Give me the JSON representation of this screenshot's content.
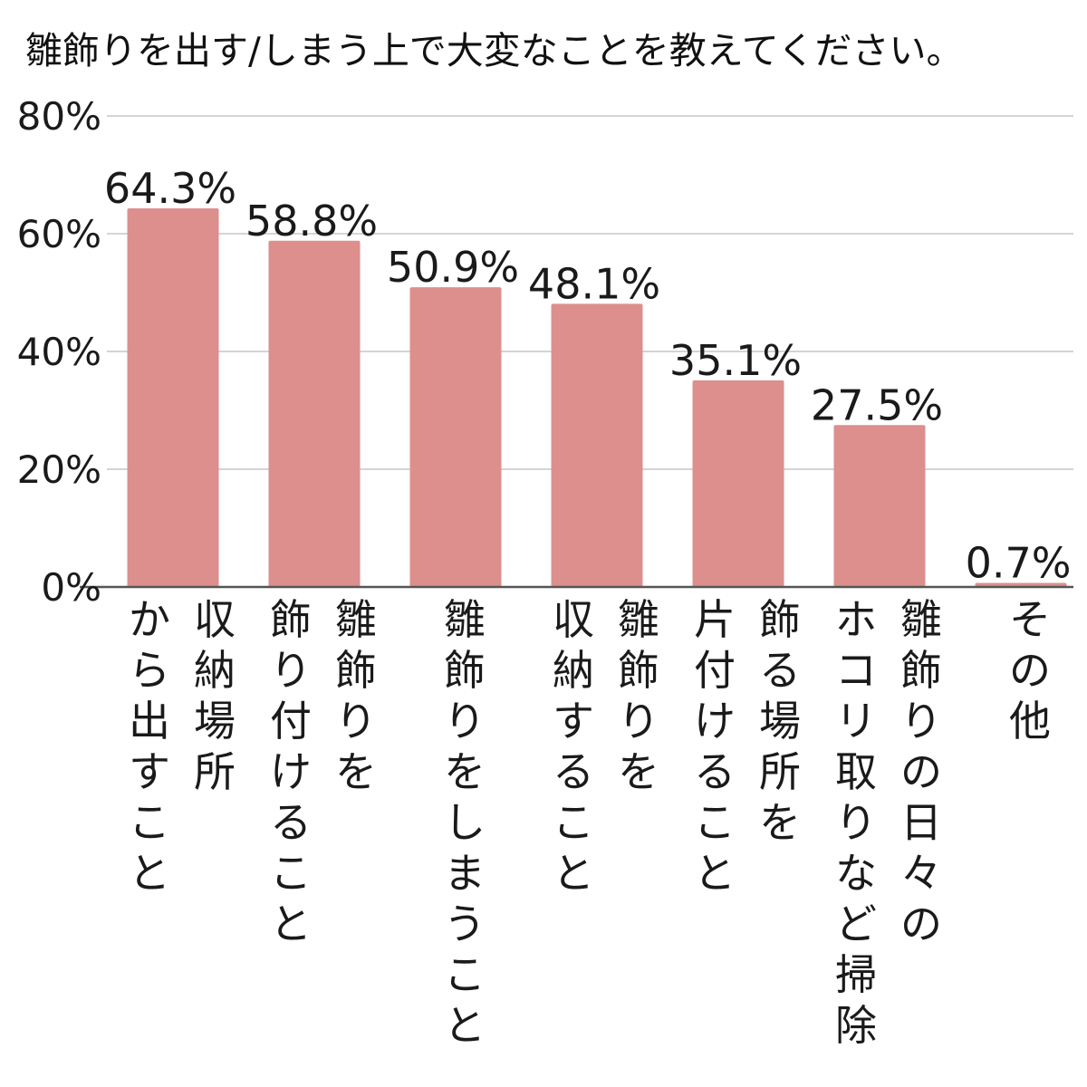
{
  "chart_data": {
    "type": "bar",
    "title": "雛飾りを出す/しまう上で大変なことを教えてください。",
    "categories": [
      [
        "収納場所",
        "から出すこと"
      ],
      [
        "雛飾りを",
        "飾り付けること"
      ],
      [
        "雛飾りをしまうこと"
      ],
      [
        "雛飾りを",
        "収納すること"
      ],
      [
        "飾る場所を",
        "片付けること"
      ],
      [
        "雛飾りの日々の",
        "ホコリ取りなど掃除"
      ],
      [
        "その他"
      ]
    ],
    "values": [
      64.3,
      58.8,
      50.9,
      48.1,
      35.1,
      27.5,
      0.7
    ],
    "value_labels": [
      "64.3%",
      "58.8%",
      "50.9%",
      "48.1%",
      "35.1%",
      "27.5%",
      "0.7%"
    ],
    "y_ticks": [
      0,
      20,
      40,
      60,
      80
    ],
    "y_tick_labels": [
      "0%",
      "20%",
      "40%",
      "60%",
      "80%"
    ],
    "ylim": [
      0,
      80
    ],
    "grid": true,
    "legend": "none",
    "bar_color": "#dc8f8d",
    "grid_color": "#d4d4d4",
    "axis_color": "#555555"
  }
}
